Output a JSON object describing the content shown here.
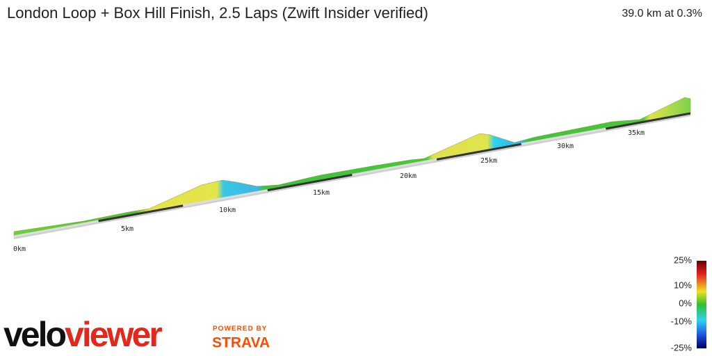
{
  "header": {
    "title": "London Loop + Box Hill Finish, 2.5 Laps (Zwift Insider verified)",
    "summary": "39.0 km at 0.3%"
  },
  "distance_markers": [
    "0km",
    "5km",
    "10km",
    "15km",
    "20km",
    "25km",
    "30km",
    "35km"
  ],
  "gradient_legend": {
    "labels": [
      "25%",
      "10%",
      "0%",
      "-10%",
      "-25%"
    ]
  },
  "branding": {
    "logo_parts": [
      "velo",
      "viewer"
    ],
    "powered_by": "POWERED BY",
    "strava": "STRAVA"
  }
}
